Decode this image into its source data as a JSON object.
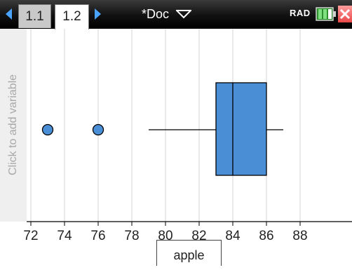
{
  "toolbar": {
    "tabs": [
      {
        "label": "1.1",
        "active": false
      },
      {
        "label": "1.2",
        "active": true
      }
    ],
    "doc_title": "*Doc",
    "angle_mode": "RAD",
    "accent_color": "#4aa3ff"
  },
  "plot": {
    "y_axis_prompt": "Click to add variable",
    "x_variable": "apple",
    "box_color": "#4a8fd6",
    "point_color": "#4a8fd6"
  },
  "chart_data": {
    "type": "boxplot",
    "variable": "apple",
    "xlim": [
      71.3,
      88.3
    ],
    "ticks": [
      72,
      74,
      76,
      78,
      80,
      82,
      84,
      86,
      88
    ],
    "tick_labels": [
      "72",
      "74",
      "76",
      "78",
      "80",
      "82",
      "84",
      "86",
      "88"
    ],
    "whisker_low": 79,
    "q1": 83,
    "median": 84,
    "q3": 86,
    "whisker_high": 87,
    "outliers": [
      73,
      76
    ],
    "grid": true
  }
}
